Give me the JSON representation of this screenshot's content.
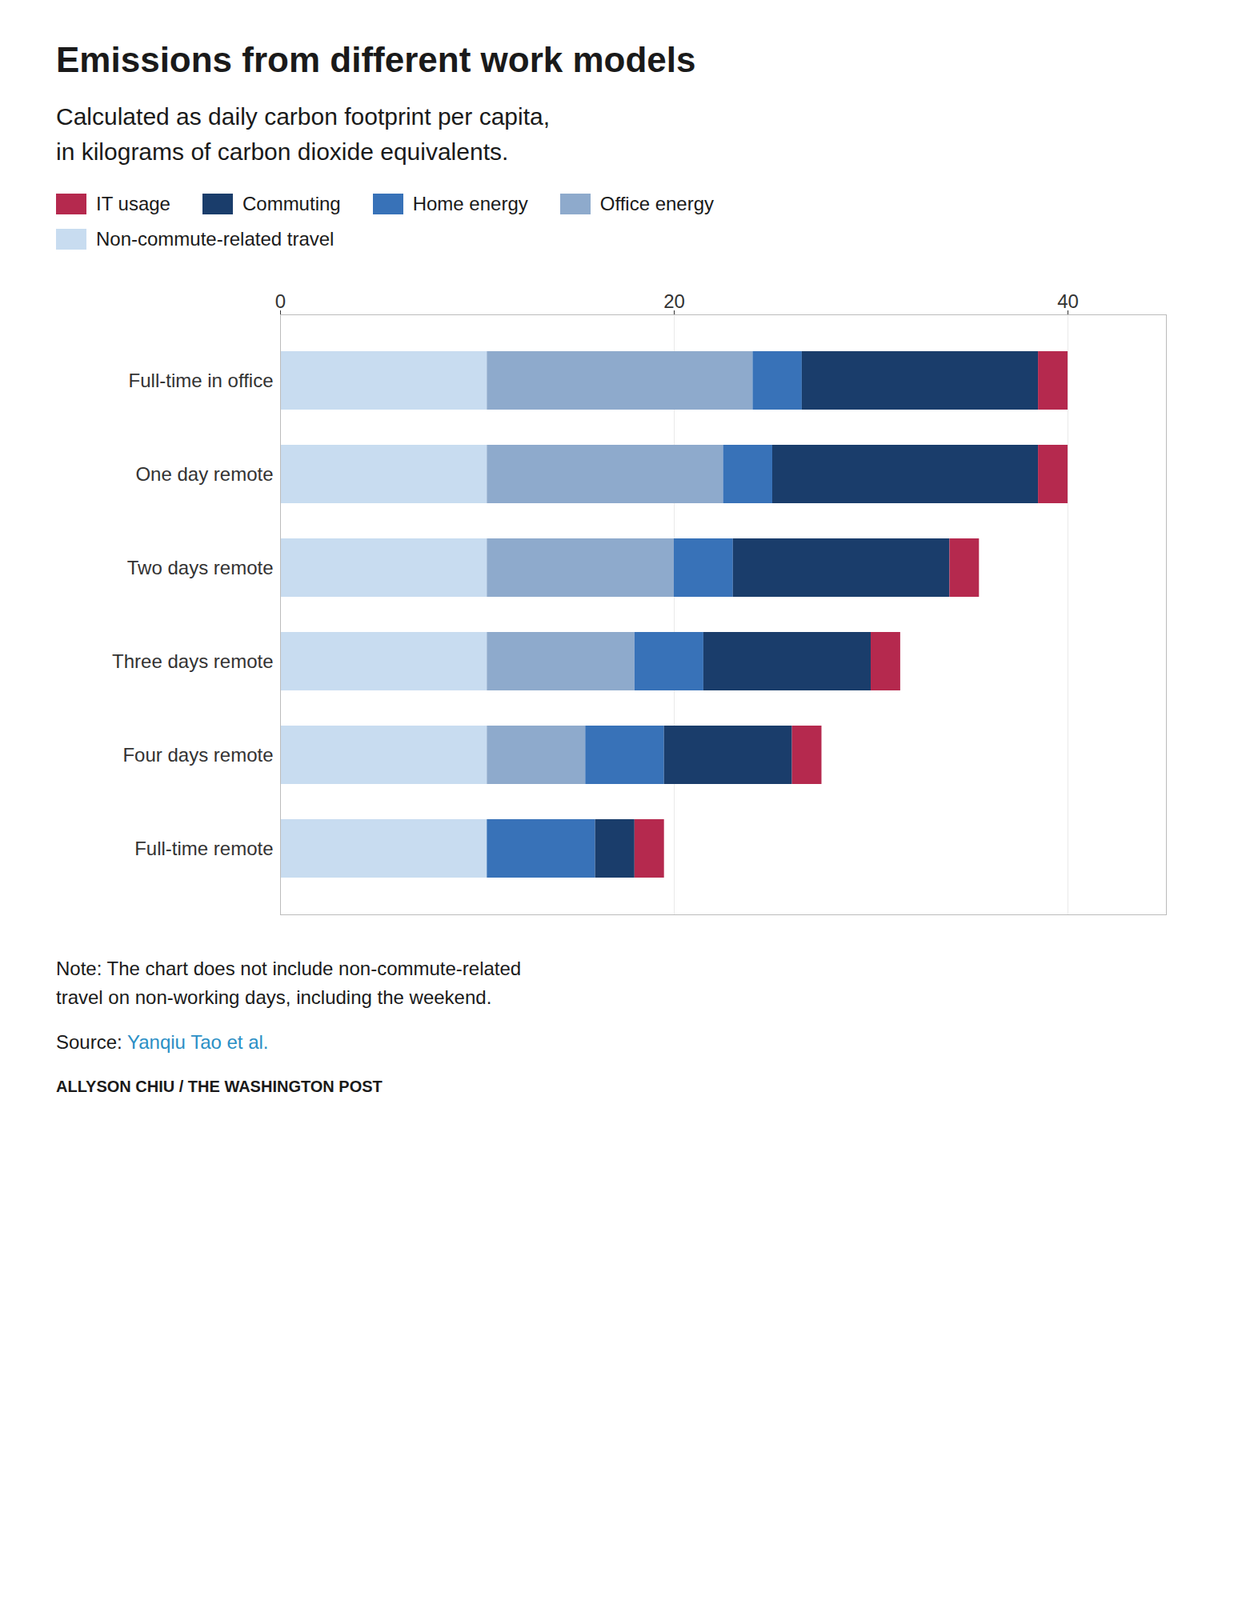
{
  "chart_data": {
    "type": "bar",
    "orientation": "horizontal",
    "stacked": true,
    "title": "Emissions from different work models",
    "subtitle": "Calculated as daily carbon footprint per capita,\nin kilograms of carbon dioxide equivalents.",
    "categories": [
      "Full-time in office",
      "One day remote",
      "Two days remote",
      "Three days remote",
      "Four days remote",
      "Full-time remote"
    ],
    "series": [
      {
        "name": "Non-commute-related travel",
        "color": "#c8dcf0",
        "values": [
          10.5,
          10.5,
          10.5,
          10.5,
          10.5,
          10.5
        ]
      },
      {
        "name": "Office energy",
        "color": "#8eaacc",
        "values": [
          13.5,
          12.0,
          9.5,
          7.5,
          5.0,
          0.0
        ]
      },
      {
        "name": "Home energy",
        "color": "#3872b8",
        "values": [
          2.5,
          2.5,
          3.0,
          3.5,
          4.0,
          5.5
        ]
      },
      {
        "name": "Commuting",
        "color": "#1a3d6b",
        "values": [
          12.0,
          13.5,
          11.0,
          8.5,
          6.5,
          2.0
        ]
      },
      {
        "name": "IT usage",
        "color": "#b5294e",
        "values": [
          1.5,
          1.5,
          1.5,
          1.5,
          1.5,
          1.5
        ]
      }
    ],
    "xlim": [
      0,
      45
    ],
    "xticks": [
      0,
      20,
      40
    ],
    "grid": true,
    "legend": "top",
    "note": "Note: The chart does not include non-commute-related\ntravel on non-working days, including the weekend.",
    "source_prefix": "Source: ",
    "source": "Yanqiu Tao et al.",
    "source_color": "#2b8fc5",
    "byline": "ALLYSON CHIU / THE WASHINGTON POST"
  }
}
